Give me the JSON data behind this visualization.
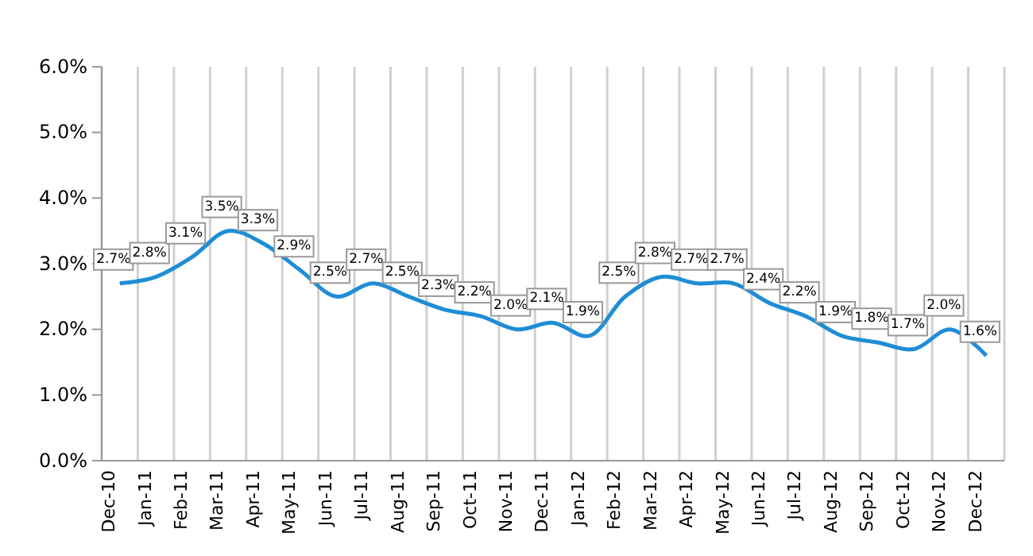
{
  "chart_data": {
    "type": "line",
    "categories": [
      "Dec-10",
      "Jan-11",
      "Feb-11",
      "Mar-11",
      "Apr-11",
      "May-11",
      "Jun-11",
      "Jul-11",
      "Aug-11",
      "Sep-11",
      "Oct-11",
      "Nov-11",
      "Dec-11",
      "Jan-12",
      "Feb-12",
      "Mar-12",
      "Apr-12",
      "May-12",
      "Jun-12",
      "Jul-12",
      "Aug-12",
      "Sep-12",
      "Oct-12",
      "Nov-12",
      "Dec-12"
    ],
    "series": [
      {
        "color": "#1f8dd6",
        "values": [
          2.7,
          2.8,
          3.1,
          3.5,
          3.3,
          2.9,
          2.5,
          2.7,
          2.5,
          2.3,
          2.2,
          2.0,
          2.1,
          1.9,
          2.5,
          2.8,
          2.7,
          2.7,
          2.4,
          2.2,
          1.9,
          1.8,
          1.7,
          2.0,
          1.6
        ],
        "value_labels": [
          "2.7%",
          "2.8%",
          "3.1%",
          "3.5%",
          "3.3%",
          "2.9%",
          "2.5%",
          "2.7%",
          "2.5%",
          "2.3%",
          "2.2%",
          "2.0%",
          "2.1%",
          "1.9%",
          "2.5%",
          "2.8%",
          "2.7%",
          "2.7%",
          "2.4%",
          "2.2%",
          "1.9%",
          "1.8%",
          "1.7%",
          "2.0%",
          "1.6%"
        ]
      }
    ],
    "ylim": [
      0,
      6
    ],
    "yticks": [
      {
        "value": 0,
        "label": "0.0%"
      },
      {
        "value": 1,
        "label": "1.0%"
      },
      {
        "value": 2,
        "label": "2.0%"
      },
      {
        "value": 3,
        "label": "3.0%"
      },
      {
        "value": 4,
        "label": "4.0%"
      },
      {
        "value": 5,
        "label": "5.0%"
      },
      {
        "value": 6,
        "label": "6.0%"
      }
    ],
    "grid": "x",
    "marker": "none",
    "line_style": "solid"
  }
}
